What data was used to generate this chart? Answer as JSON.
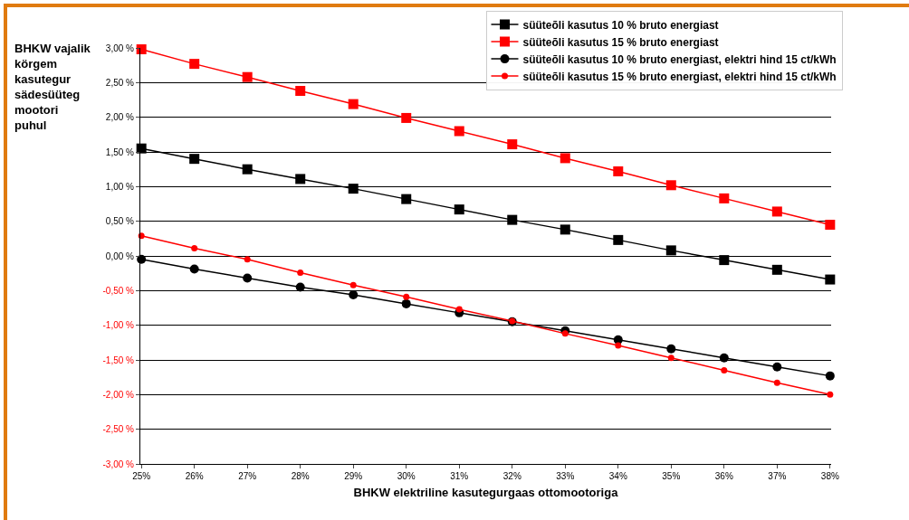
{
  "chart_data": {
    "type": "line",
    "xlabel": "BHKW elektriline kasutegurgaas ottomootoriga",
    "ylabel": "BHKW vajalik\nkörgem\nkasutegur\nsädesüüteg\nmootori\npuhul",
    "categories": [
      "25%",
      "26%",
      "27%",
      "28%",
      "29%",
      "30%",
      "31%",
      "32%",
      "33%",
      "34%",
      "35%",
      "36%",
      "37%",
      "38%"
    ],
    "series": [
      {
        "name": "süüteõli kasutus 10 % bruto energiast",
        "color": "#000000",
        "marker": "square",
        "values": [
          1.55,
          1.4,
          1.25,
          1.11,
          0.97,
          0.82,
          0.67,
          0.52,
          0.38,
          0.23,
          0.08,
          -0.06,
          -0.2,
          -0.34
        ]
      },
      {
        "name": "süüteõli kasutus 15 % bruto energiast",
        "color": "#ff0000",
        "marker": "square",
        "values": [
          2.98,
          2.77,
          2.58,
          2.38,
          2.19,
          1.99,
          1.8,
          1.61,
          1.41,
          1.22,
          1.02,
          0.83,
          0.64,
          0.45
        ]
      },
      {
        "name": "süüteõli kasutus 10 % bruto energiast, elektri hind 15 ct/kWh",
        "color": "#000000",
        "marker": "circle",
        "values": [
          -0.05,
          -0.19,
          -0.32,
          -0.45,
          -0.56,
          -0.69,
          -0.82,
          -0.95,
          -1.08,
          -1.21,
          -1.34,
          -1.47,
          -1.6,
          -1.73
        ]
      },
      {
        "name": "süüteõli kasutus 15 % bruto energiast, elektri hind 15 ct/kWh",
        "color": "#ff0000",
        "marker": "circle",
        "values": [
          0.29,
          0.11,
          -0.05,
          -0.24,
          -0.42,
          -0.59,
          -0.77,
          -0.94,
          -1.12,
          -1.29,
          -1.47,
          -1.65,
          -1.83,
          -2.0
        ]
      }
    ],
    "ylim": [
      -3,
      3
    ],
    "yticks": [
      {
        "value": -3,
        "label": "-3,00 %"
      },
      {
        "value": -2.5,
        "label": "-2,50 %"
      },
      {
        "value": -2,
        "label": "-2,00 %"
      },
      {
        "value": -1.5,
        "label": "-1,50 %"
      },
      {
        "value": -1,
        "label": "-1,00 %"
      },
      {
        "value": -0.5,
        "label": "-0,50 %"
      },
      {
        "value": 0,
        "label": "0,00 %"
      },
      {
        "value": 0.5,
        "label": "0,50 %"
      },
      {
        "value": 1,
        "label": "1,00 %"
      },
      {
        "value": 1.5,
        "label": "1,50 %"
      },
      {
        "value": 2,
        "label": "2,00 %"
      },
      {
        "value": 2.5,
        "label": "2,50 %"
      },
      {
        "value": 3,
        "label": "3,00 %"
      }
    ],
    "grid": "y",
    "legend": "top right",
    "line_style": "solid"
  }
}
